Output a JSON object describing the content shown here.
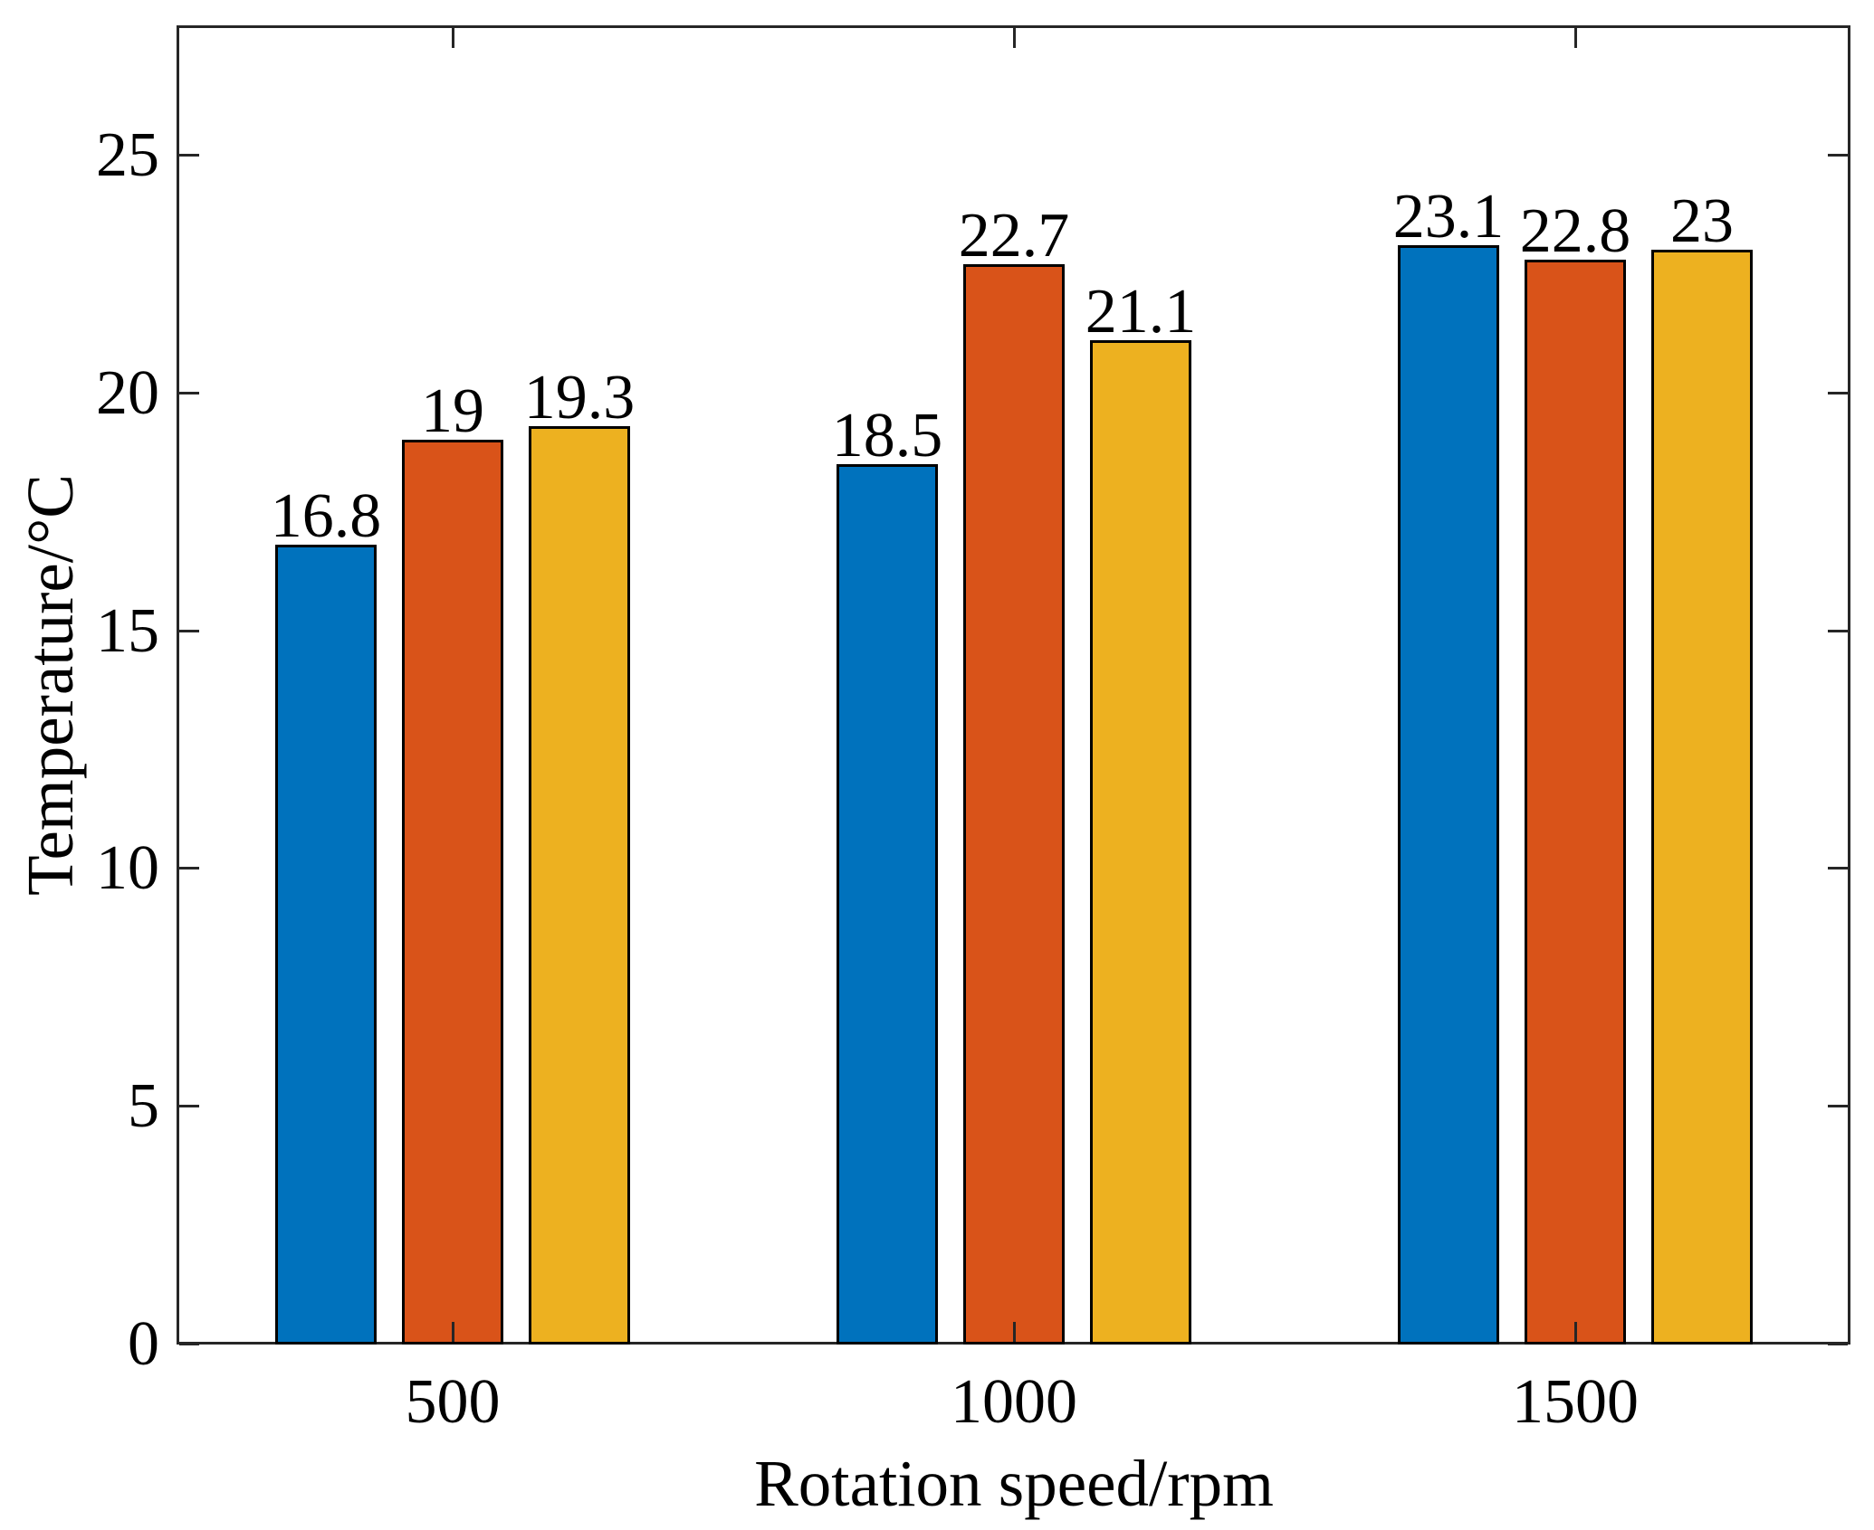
{
  "figure": {
    "background": "#FFFFFF",
    "axis_color": "#262626",
    "bar_edge_color": "#000000",
    "text_color": "#000000"
  },
  "chart_data": {
    "type": "bar",
    "title": "",
    "xlabel": "Rotation speed/rpm",
    "ylabel": "Temperature/°C",
    "categories": [
      "500",
      "1000",
      "1500"
    ],
    "series": [
      {
        "name": "series-blue",
        "color": "#0072BD",
        "values": [
          16.8,
          18.5,
          23.1
        ],
        "labels": [
          "16.8",
          "18.5",
          "23.1"
        ]
      },
      {
        "name": "series-orange",
        "color": "#D95319",
        "values": [
          19,
          22.7,
          22.8
        ],
        "labels": [
          "19",
          "22.7",
          "22.8"
        ]
      },
      {
        "name": "series-yellow",
        "color": "#EDB120",
        "values": [
          19.3,
          21.1,
          23
        ],
        "labels": [
          "19.3",
          "21.1",
          "23"
        ]
      }
    ],
    "y_ticks": [
      "0",
      "5",
      "10",
      "15",
      "20",
      "25"
    ],
    "y_tick_values": [
      0,
      5,
      10,
      15,
      20,
      25
    ],
    "ylim": [
      0,
      27.7
    ],
    "grid": false,
    "legend": null,
    "value_labels_shown": true,
    "box": true
  }
}
